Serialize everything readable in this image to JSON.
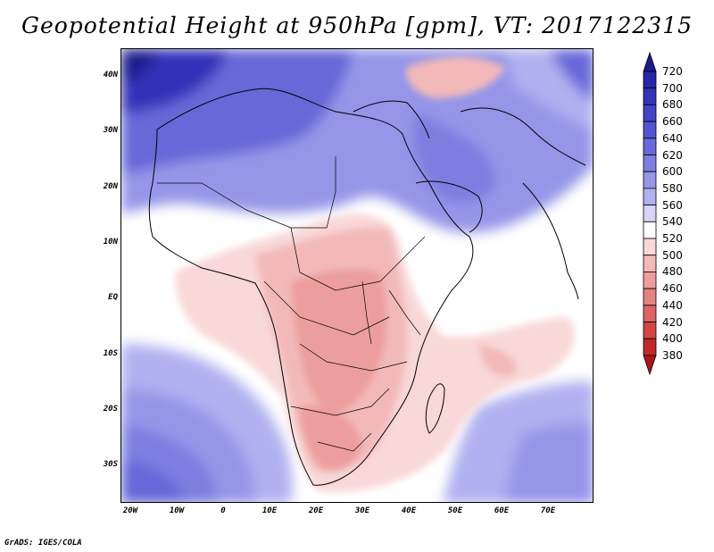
{
  "title": "Geopotential Height at 950hPa [gpm], VT: 2017122315",
  "map": {
    "variable": "Geopotential Height",
    "level": "950hPa",
    "units": "gpm",
    "valid_time": "2017122315",
    "region": {
      "lon_range": [
        -23,
        80
      ],
      "lat_range": [
        -37,
        46
      ]
    },
    "lat_labels": [
      "40N",
      "30N",
      "20N",
      "10N",
      "EQ",
      "10S",
      "20S",
      "30S"
    ],
    "lat_values": [
      40,
      30,
      20,
      10,
      0,
      -10,
      -20,
      -30
    ],
    "lon_labels": [
      "20W",
      "10W",
      "0",
      "10E",
      "20E",
      "30E",
      "40E",
      "50E",
      "60E",
      "70E"
    ],
    "lon_values": [
      -20,
      -10,
      0,
      10,
      20,
      30,
      40,
      50,
      60,
      70
    ]
  },
  "colorbar": {
    "labels": [
      "720",
      "700",
      "680",
      "660",
      "640",
      "620",
      "600",
      "580",
      "560",
      "540",
      "520",
      "500",
      "480",
      "460",
      "440",
      "420",
      "400",
      "380"
    ],
    "colors": [
      "#1a1a8c",
      "#2626a8",
      "#3333b8",
      "#4343c6",
      "#5454cf",
      "#6868d8",
      "#7d7ee0",
      "#9596e8",
      "#b0b1f0",
      "#d4d5f8",
      "#ffffff",
      "#f9d8d8",
      "#f3b9b9",
      "#ec9e9e",
      "#e48383",
      "#dc6464",
      "#d24545",
      "#c22a2a",
      "#a81818"
    ]
  },
  "footer": "GrADS: IGES/COLA"
}
